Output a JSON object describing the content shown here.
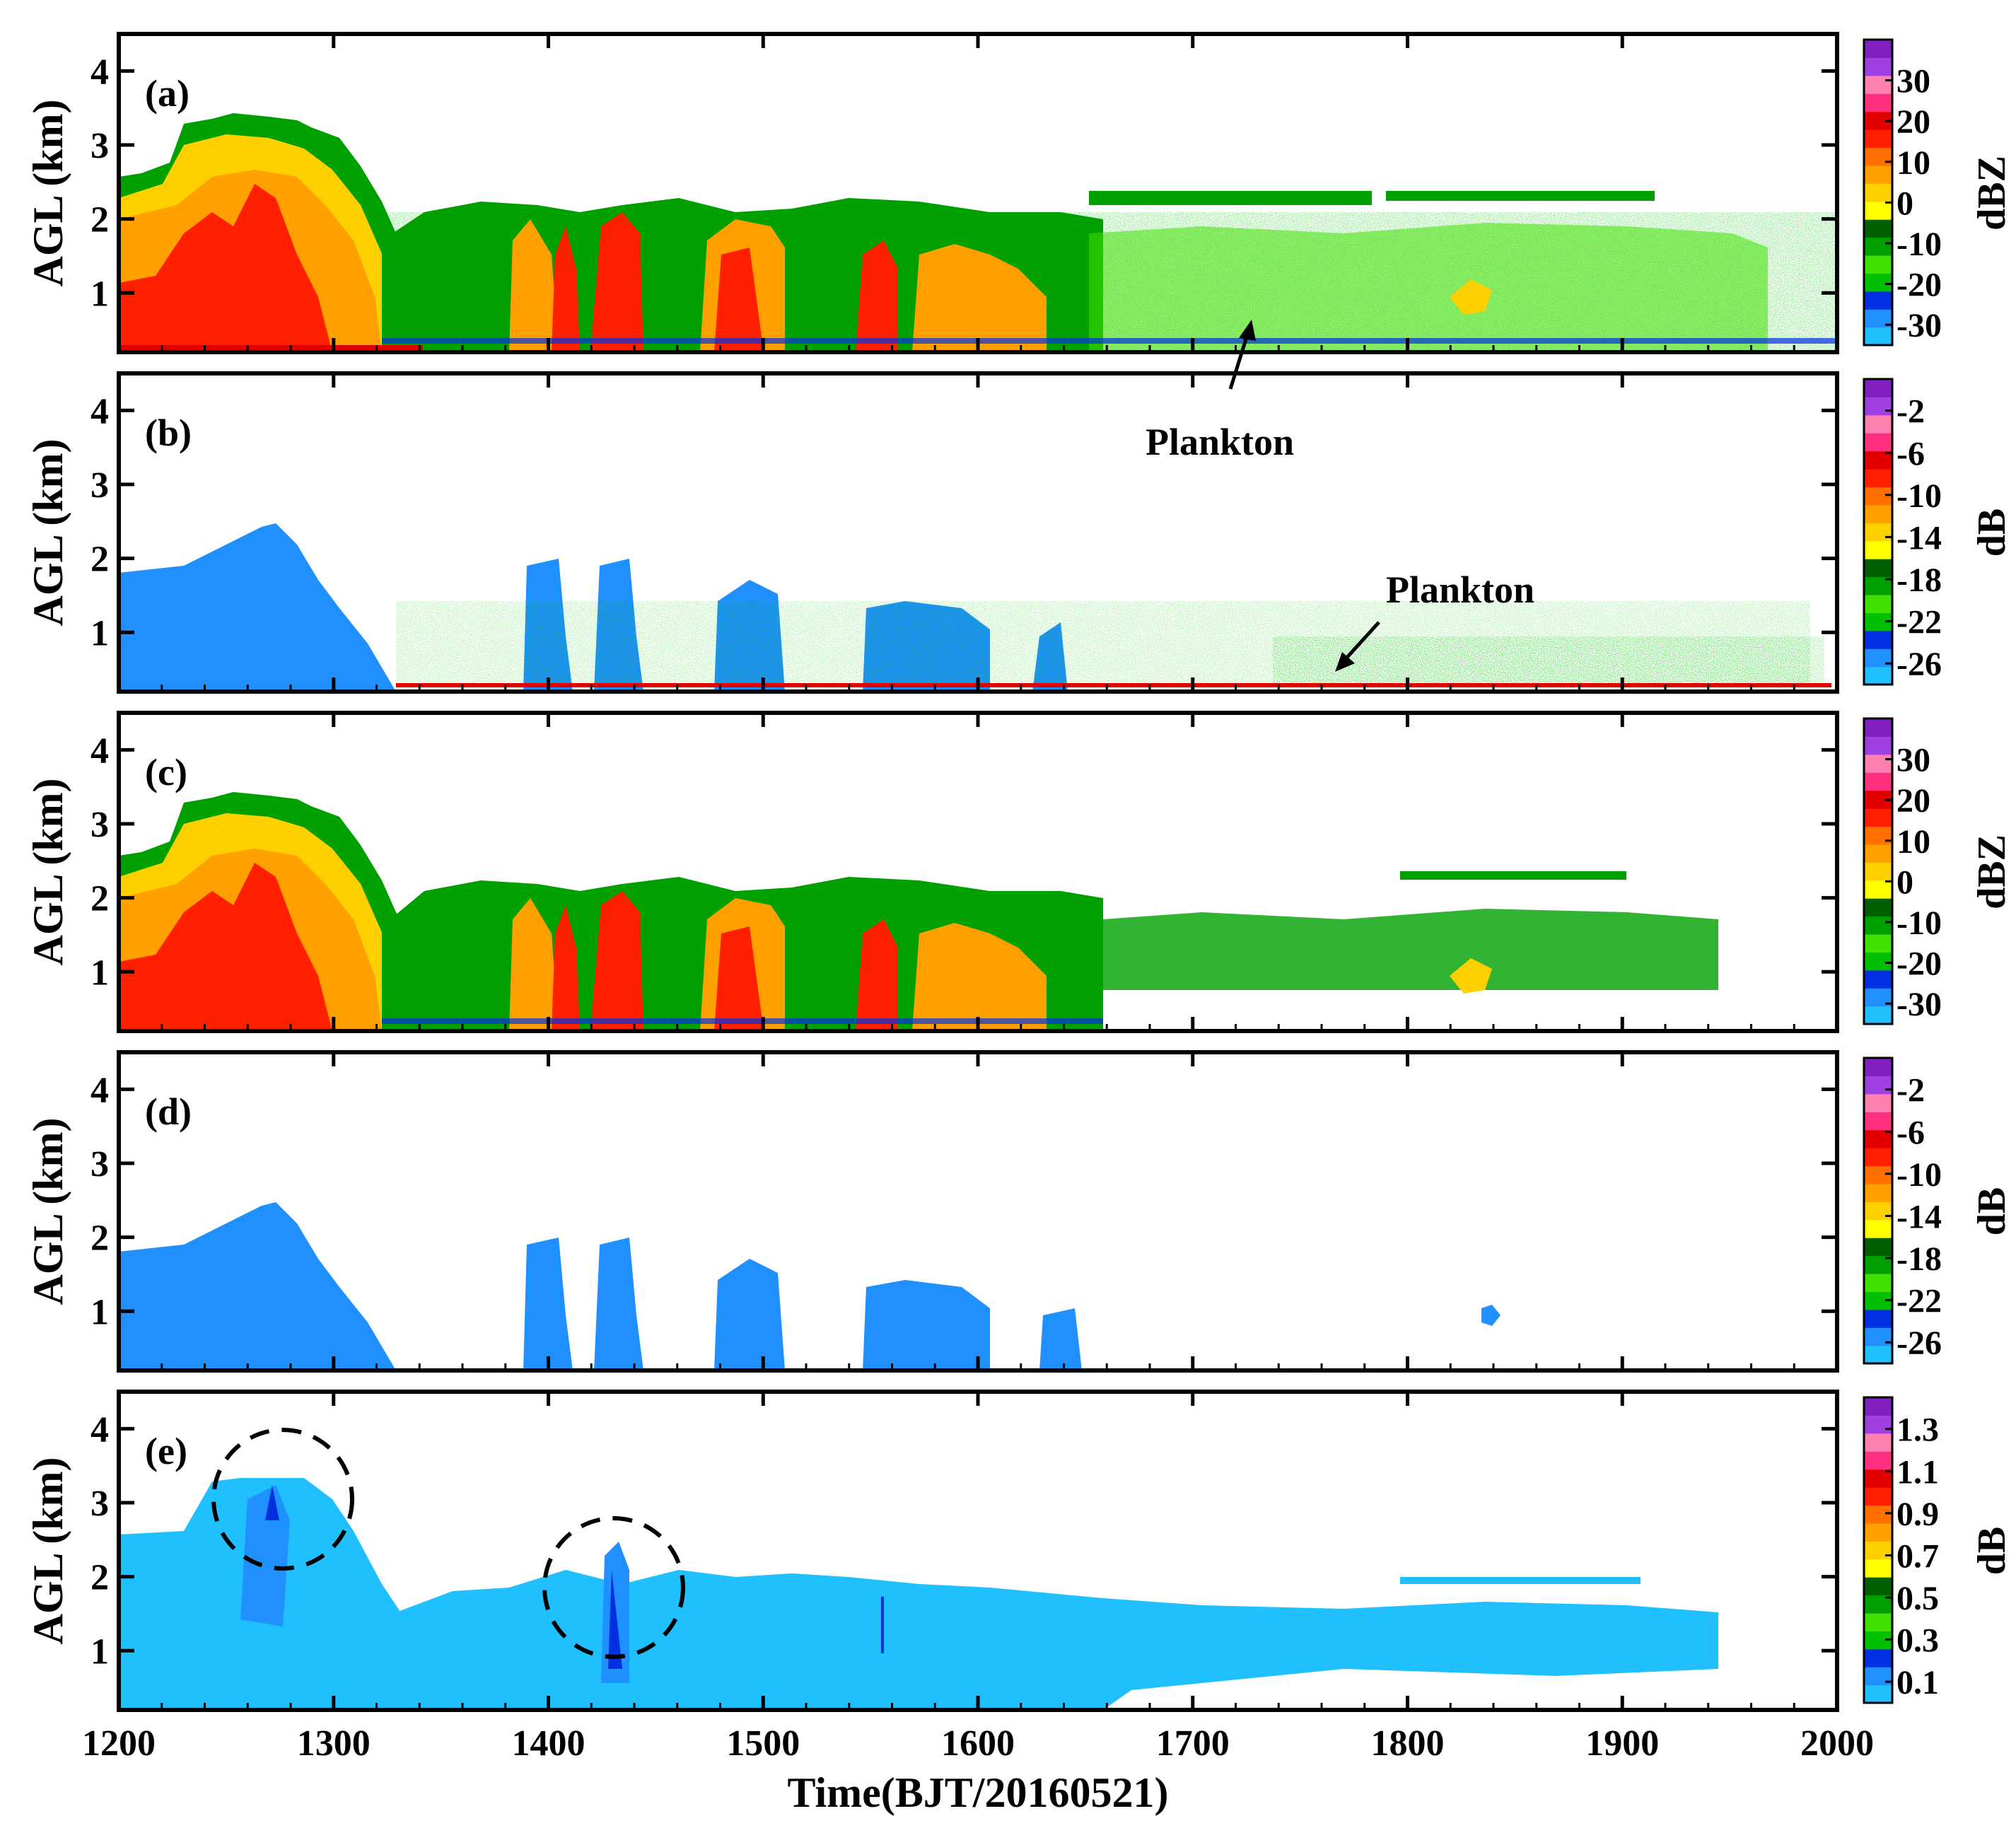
{
  "chart_data": {
    "type": "heatmap",
    "xlabel": "Time(BJT/20160521)",
    "ylabel": "AGL (km)",
    "x_ticks": [
      1200,
      1300,
      1400,
      1500,
      1600,
      1700,
      1800,
      1900,
      2000
    ],
    "xlim": [
      1200,
      2000
    ],
    "ylim": [
      0.2,
      4.5
    ],
    "y_ticks": [
      1,
      2,
      3,
      4
    ],
    "panels": [
      {
        "tag": "(a)",
        "unit": "dBZ",
        "colorbar_ticks": [
          "30",
          "20",
          "10",
          "0",
          "-10",
          "-20",
          "-30"
        ],
        "colorbar_range": [
          -35,
          40
        ],
        "colors": [
          "#20c0ff",
          "#2090ff",
          "#0030e0",
          "#00c000",
          "#40e000",
          "#00a000",
          "#006000",
          "#ffff00",
          "#ffd000",
          "#ffa000",
          "#ff7000",
          "#ff2000",
          "#e00000",
          "#ff3080",
          "#ff80b0",
          "#a040e0",
          "#8020c0"
        ],
        "annotations": [
          "Plankton"
        ]
      },
      {
        "tag": "(b)",
        "unit": "dB",
        "colorbar_ticks": [
          "-2",
          "-6",
          "-10",
          "-14",
          "-18",
          "-22",
          "-26"
        ],
        "colorbar_range": [
          -28,
          1
        ],
        "colors": [
          "#20c0ff",
          "#2090ff",
          "#0030e0",
          "#00c000",
          "#40e000",
          "#00a000",
          "#006000",
          "#ffff00",
          "#ffd000",
          "#ffa000",
          "#ff7000",
          "#ff2000",
          "#e00000",
          "#ff3080",
          "#ff80b0",
          "#a040e0",
          "#8020c0"
        ],
        "annotations": [
          "Plankton"
        ]
      },
      {
        "tag": "(c)",
        "unit": "dBZ",
        "colorbar_ticks": [
          "30",
          "20",
          "10",
          "0",
          "-10",
          "-20",
          "-30"
        ],
        "colorbar_range": [
          -35,
          40
        ],
        "colors": [
          "#20c0ff",
          "#2090ff",
          "#0030e0",
          "#00c000",
          "#40e000",
          "#00a000",
          "#006000",
          "#ffff00",
          "#ffd000",
          "#ffa000",
          "#ff7000",
          "#ff2000",
          "#e00000",
          "#ff3080",
          "#ff80b0",
          "#a040e0",
          "#8020c0"
        ],
        "annotations": []
      },
      {
        "tag": "(d)",
        "unit": "dB",
        "colorbar_ticks": [
          "-2",
          "-6",
          "-10",
          "-14",
          "-18",
          "-22",
          "-26"
        ],
        "colorbar_range": [
          -28,
          1
        ],
        "colors": [
          "#20c0ff",
          "#2090ff",
          "#0030e0",
          "#00c000",
          "#40e000",
          "#00a000",
          "#006000",
          "#ffff00",
          "#ffd000",
          "#ffa000",
          "#ff7000",
          "#ff2000",
          "#e00000",
          "#ff3080",
          "#ff80b0",
          "#a040e0",
          "#8020c0"
        ],
        "annotations": []
      },
      {
        "tag": "(e)",
        "unit": "dB",
        "colorbar_ticks": [
          "1.3",
          "1.1",
          "0.9",
          "0.7",
          "0.5",
          "0.3",
          "0.1"
        ],
        "colorbar_range": [
          0.0,
          1.45
        ],
        "colors": [
          "#20c0ff",
          "#2090ff",
          "#0030e0",
          "#00c000",
          "#40e000",
          "#00a000",
          "#006000",
          "#ffff00",
          "#ffd000",
          "#ffa000",
          "#ff7000",
          "#ff2000",
          "#e00000",
          "#ff3080",
          "#ff80b0",
          "#a040e0",
          "#8020c0"
        ],
        "annotations": [
          "dashed circle ~1275 BJT, 2.9 km",
          "dashed circle ~1432 BJT, 1.7 km"
        ]
      }
    ]
  },
  "labels": {
    "plankton_a": "Plankton",
    "plankton_b": "Plankton"
  }
}
